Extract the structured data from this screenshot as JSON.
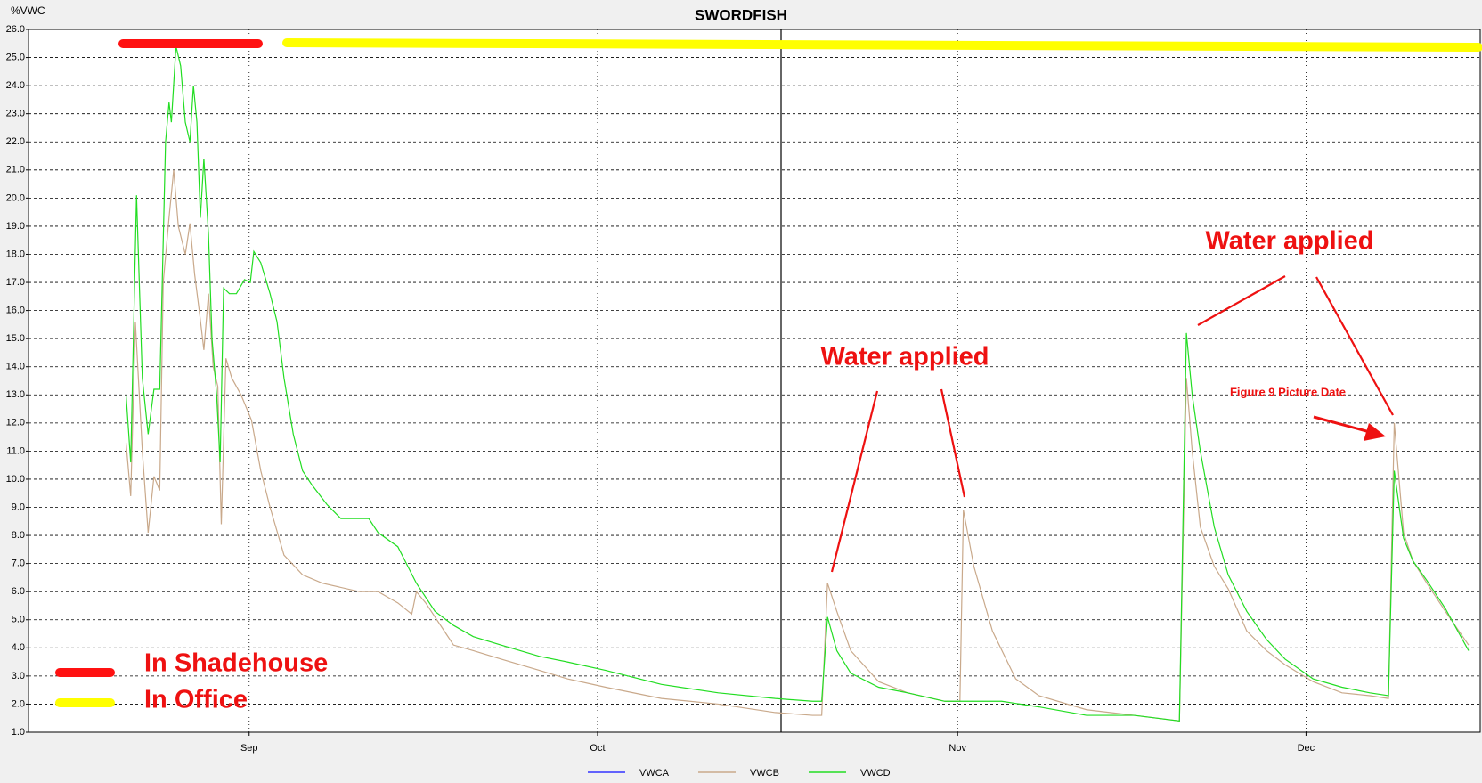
{
  "chart_data": {
    "type": "line",
    "title": "SWORDFISH",
    "y_label": "%VWC",
    "xlim": [
      225,
      350
    ],
    "xticks": [
      {
        "value": 244,
        "label": "Sep"
      },
      {
        "value": 274,
        "label": "Oct"
      },
      {
        "value": 305,
        "label": "Nov"
      },
      {
        "value": 335,
        "label": "Dec"
      }
    ],
    "ylim": [
      1,
      26
    ],
    "yticks": [
      {
        "value": 1,
        "label": "1.0"
      },
      {
        "value": 2,
        "label": "2.0"
      },
      {
        "value": 3,
        "label": "3.0"
      },
      {
        "value": 4,
        "label": "4.0"
      },
      {
        "value": 5,
        "label": "5.0"
      },
      {
        "value": 6,
        "label": "6.0"
      },
      {
        "value": 7,
        "label": "7.0"
      },
      {
        "value": 8,
        "label": "8.0"
      },
      {
        "value": 9,
        "label": "9.0"
      },
      {
        "value": 10,
        "label": "10.0"
      },
      {
        "value": 11,
        "label": "11.0"
      },
      {
        "value": 12,
        "label": "12.0"
      },
      {
        "value": 13,
        "label": "13.0"
      },
      {
        "value": 14,
        "label": "14.0"
      },
      {
        "value": 15,
        "label": "15.0"
      },
      {
        "value": 16,
        "label": "16.0"
      },
      {
        "value": 17,
        "label": "17.0"
      },
      {
        "value": 18,
        "label": "18.0"
      },
      {
        "value": 19,
        "label": "19.0"
      },
      {
        "value": 20,
        "label": "20.0"
      },
      {
        "value": 21,
        "label": "21.0"
      },
      {
        "value": 22,
        "label": "22.0"
      },
      {
        "value": 23,
        "label": "23.0"
      },
      {
        "value": 24,
        "label": "24.0"
      },
      {
        "value": 25,
        "label": "25.0"
      },
      {
        "value": 26,
        "label": "26.0"
      }
    ],
    "grid": true,
    "series": [
      {
        "name": "VWCA",
        "color": "#3333ff",
        "x": [],
        "values": []
      },
      {
        "name": "VWCB",
        "color": "#c9a98b",
        "x": [
          233.4,
          233.8,
          234.2,
          234.8,
          235.3,
          235.8,
          236.3,
          236.6,
          237.1,
          237.5,
          237.9,
          238.5,
          238.9,
          239.3,
          239.7,
          240.1,
          240.5,
          240.9,
          241.3,
          241.6,
          242.0,
          242.5,
          243.3,
          244.2,
          245.0,
          245.8,
          247.0,
          248.6,
          250.3,
          253.5,
          255.1,
          256.8,
          258.0,
          258.4,
          259.2,
          260.8,
          261.6,
          263.3,
          265.7,
          269.0,
          271.4,
          274.7,
          279.5,
          284.4,
          289.3,
          292.5,
          293.3,
          293.8,
          294.6,
          295.8,
          298.2,
          300.7,
          303.9,
          305.2,
          305.5,
          306.4,
          308.0,
          310.0,
          312.0,
          316.1,
          320.2,
          324.1,
          324.7,
          325.2,
          325.9,
          327.1,
          328.3,
          329.9,
          331.6,
          333.2,
          335.6,
          338.1,
          340.5,
          342.1,
          342.6,
          343.4,
          344.2,
          345.4,
          347.0,
          349.0
        ],
        "values": [
          11.3,
          9.4,
          15.6,
          11.0,
          8.1,
          10.1,
          9.6,
          17.0,
          19.3,
          21.0,
          19.0,
          18.0,
          19.1,
          17.3,
          16.0,
          14.6,
          16.6,
          14.0,
          13.3,
          8.4,
          14.3,
          13.6,
          13.0,
          12.1,
          10.3,
          9.0,
          7.3,
          6.6,
          6.3,
          6.0,
          6.0,
          5.6,
          5.2,
          6.0,
          5.6,
          4.6,
          4.1,
          3.9,
          3.6,
          3.2,
          2.9,
          2.6,
          2.2,
          2.0,
          1.7,
          1.6,
          1.6,
          6.3,
          5.3,
          3.9,
          2.8,
          2.4,
          2.1,
          2.1,
          8.9,
          6.9,
          4.6,
          2.9,
          2.3,
          1.8,
          1.6,
          1.4,
          13.6,
          11.0,
          8.3,
          6.9,
          6.1,
          4.6,
          3.9,
          3.4,
          2.8,
          2.4,
          2.3,
          2.2,
          12.0,
          8.1,
          7.1,
          6.3,
          5.3,
          4.1
        ]
      },
      {
        "name": "VWCD",
        "color": "#22dd22",
        "x": [
          233.4,
          233.8,
          234.3,
          234.8,
          235.3,
          235.8,
          236.3,
          236.8,
          237.1,
          237.3,
          237.7,
          238.1,
          238.5,
          238.9,
          239.2,
          239.5,
          239.8,
          240.1,
          240.5,
          240.8,
          241.2,
          241.5,
          241.8,
          242.3,
          242.9,
          243.6,
          244.1,
          244.4,
          245.0,
          245.8,
          246.4,
          247.0,
          247.8,
          248.6,
          249.4,
          250.7,
          251.9,
          254.3,
          255.1,
          256.8,
          258.4,
          260.0,
          261.6,
          263.3,
          265.7,
          269.0,
          271.4,
          274.7,
          279.5,
          284.4,
          289.3,
          292.5,
          293.3,
          293.8,
          294.6,
          295.8,
          298.2,
          300.7,
          303.9,
          305.5,
          308.8,
          312.0,
          316.1,
          320.2,
          324.1,
          324.7,
          325.2,
          325.9,
          327.1,
          328.3,
          329.9,
          331.6,
          333.2,
          335.6,
          338.1,
          340.5,
          342.1,
          342.6,
          343.4,
          344.2,
          345.4,
          347.0,
          349.0
        ],
        "values": [
          13.0,
          10.6,
          20.1,
          13.6,
          11.6,
          13.2,
          13.2,
          22.0,
          23.4,
          22.7,
          25.4,
          24.7,
          22.7,
          22.0,
          24.0,
          22.7,
          19.3,
          21.4,
          18.7,
          15.0,
          13.0,
          10.6,
          16.8,
          16.6,
          16.6,
          17.1,
          17.0,
          18.1,
          17.7,
          16.6,
          15.6,
          13.6,
          11.6,
          10.3,
          9.8,
          9.1,
          8.6,
          8.6,
          8.1,
          7.6,
          6.3,
          5.3,
          4.8,
          4.4,
          4.1,
          3.7,
          3.5,
          3.2,
          2.7,
          2.4,
          2.2,
          2.1,
          2.1,
          5.1,
          3.9,
          3.1,
          2.6,
          2.4,
          2.1,
          2.1,
          2.1,
          1.9,
          1.6,
          1.6,
          1.4,
          15.2,
          13.0,
          11.0,
          8.3,
          6.6,
          5.3,
          4.3,
          3.6,
          2.9,
          2.6,
          2.4,
          2.3,
          10.3,
          7.9,
          7.1,
          6.4,
          5.4,
          3.9
        ]
      }
    ],
    "annotations": [
      "Water applied",
      "Water applied",
      "Figure 9 Picture Date"
    ],
    "period_labels": [
      "In Shadehouse",
      "In Office"
    ]
  }
}
